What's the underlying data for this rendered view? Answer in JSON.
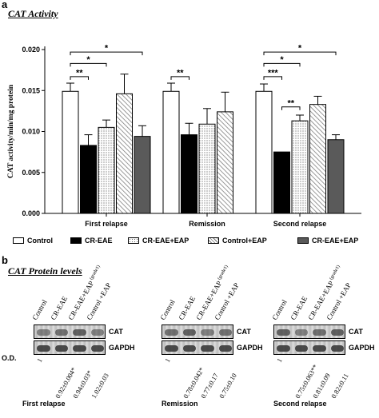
{
  "panel_a": {
    "letter": "a",
    "title": "CAT Activity"
  },
  "panel_b": {
    "letter": "b",
    "title": "CAT Protein levels"
  },
  "chart_data": {
    "type": "bar",
    "title": "CAT Activity",
    "ylabel": "CAT activity/min/mg protein",
    "xlabel": "",
    "categories": [
      "First relapse",
      "Remission",
      "Second relapse"
    ],
    "ylim": [
      0,
      0.02
    ],
    "yticks": [
      "0.000",
      "0.005",
      "0.010",
      "0.015",
      "0.020"
    ],
    "legend_position": "bottom",
    "series": [
      {
        "name": "Control",
        "values": [
          0.0149,
          0.0149,
          0.0149
        ],
        "errors": [
          0.001,
          0.001,
          0.0009
        ],
        "fill": "white"
      },
      {
        "name": "CR-EAE",
        "values": [
          0.0083,
          0.0096,
          0.0075
        ],
        "errors": [
          0.0013,
          0.0014,
          0.0
        ],
        "fill": "black"
      },
      {
        "name": "CR-EAE+EAP",
        "values": [
          0.0105,
          0.0109,
          0.0113
        ],
        "errors": [
          0.0009,
          0.0019,
          0.0007
        ],
        "fill": "dots"
      },
      {
        "name": "Control+EAP",
        "values": [
          0.0146,
          0.0124,
          0.0133
        ],
        "errors": [
          0.0024,
          0.0024,
          0.001
        ],
        "fill": "hatch"
      },
      {
        "name": "CR-EAE+EAP",
        "values": [
          0.0094,
          0.0,
          0.009
        ],
        "errors": [
          0.0013,
          0.0,
          0.0006
        ],
        "fill": "gray"
      }
    ],
    "significance": [
      {
        "group": 0,
        "from": 0,
        "to": 1,
        "label": "**",
        "level": 0.0167
      },
      {
        "group": 0,
        "from": 0,
        "to": 2,
        "label": "*",
        "level": 0.0183
      },
      {
        "group": 0,
        "from": 0,
        "to": 4,
        "label": "*",
        "level": 0.0197
      },
      {
        "group": 1,
        "from": 0,
        "to": 1,
        "label": "**",
        "level": 0.0167
      },
      {
        "group": 2,
        "from": 0,
        "to": 1,
        "label": "***",
        "level": 0.0167
      },
      {
        "group": 2,
        "from": 1,
        "to": 2,
        "label": "**",
        "level": 0.013
      },
      {
        "group": 2,
        "from": 0,
        "to": 2,
        "label": "*",
        "level": 0.0183
      },
      {
        "group": 2,
        "from": 0,
        "to": 4,
        "label": "*",
        "level": 0.0197
      }
    ]
  },
  "legend": [
    {
      "label": "Control",
      "fill": "white"
    },
    {
      "label": "CR-EAE",
      "fill": "black"
    },
    {
      "label": "CR-EAE+EAP",
      "fill": "dots"
    },
    {
      "label": "Control+EAP",
      "fill": "hatch"
    },
    {
      "label": "CR-EAE+EAP",
      "fill": "gray"
    }
  ],
  "blots": {
    "od_label": "O.D.",
    "cat_label": "CAT",
    "gapdh_label": "GAPDH",
    "groups": [
      {
        "title": "First relapse",
        "lanes": [
          "Control",
          "CR-EAE",
          "CR-EAE+EAP",
          "Control +EAP"
        ],
        "grade_note": "(grade1)",
        "od": [
          "1",
          "0.92±0.004*",
          "0.94±0.03*",
          "1.02±0.03"
        ]
      },
      {
        "title": "Remission",
        "lanes": [
          "Control",
          "CR-EAE",
          "CR-EAE+EAP",
          "Control +EAP"
        ],
        "grade_note": "(grade1)",
        "od": [
          "1",
          "0.78±0.042*",
          "0.77±0.17",
          "0.75±0.10"
        ]
      },
      {
        "title": "Second relapse",
        "lanes": [
          "Control",
          "CR-EAE",
          "CR-EAE+EAP",
          "Control +EAP"
        ],
        "grade_note": "(grade1)",
        "od": [
          "1",
          "0.75±0.063**",
          "0.81±0.09",
          "0.82±0.11"
        ]
      }
    ]
  }
}
